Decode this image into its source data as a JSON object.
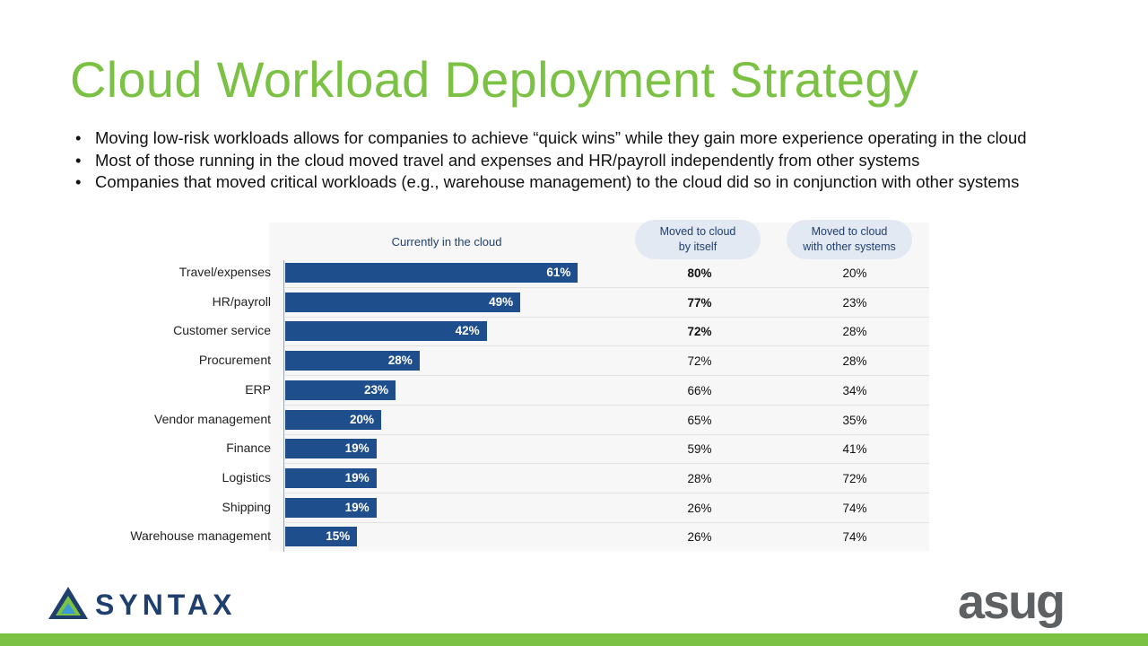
{
  "title": "Cloud Workload Deployment Strategy",
  "bullets": [
    "Moving low-risk workloads allows for companies to achieve “quick wins” while they gain more experience operating in the cloud",
    "Most of those running in the cloud moved travel and expenses and HR/payroll independently from other systems",
    "Companies that moved critical workloads (e.g., warehouse management) to the cloud did so in conjunction with other systems"
  ],
  "chart_data": {
    "type": "bar",
    "orientation": "horizontal",
    "columns": [
      "Currently in the cloud",
      "Moved to cloud\nby itself",
      "Moved to cloud\nwith other systems"
    ],
    "categories": [
      "Travel/expenses",
      "HR/payroll",
      "Customer service",
      "Procurement",
      "ERP",
      "Vendor management",
      "Finance",
      "Logistics",
      "Shipping",
      "Warehouse management"
    ],
    "values": [
      61,
      49,
      42,
      28,
      23,
      20,
      19,
      19,
      19,
      15
    ],
    "value_labels": [
      "61%",
      "49%",
      "42%",
      "28%",
      "23%",
      "20%",
      "19%",
      "19%",
      "19%",
      "15%"
    ],
    "moved_by_itself": [
      "80%",
      "77%",
      "72%",
      "72%",
      "66%",
      "65%",
      "59%",
      "28%",
      "26%",
      "26%"
    ],
    "moved_with_other_systems": [
      "20%",
      "23%",
      "28%",
      "28%",
      "34%",
      "35%",
      "41%",
      "72%",
      "74%",
      "74%"
    ],
    "bold_rows_by_itself": [
      0,
      1,
      2
    ],
    "bar_color": "#1f4e8c"
  },
  "logos": {
    "left": "SYNTAX",
    "right": "asug"
  },
  "colors": {
    "accent": "#7bc143",
    "navy": "#1f3f6e"
  }
}
